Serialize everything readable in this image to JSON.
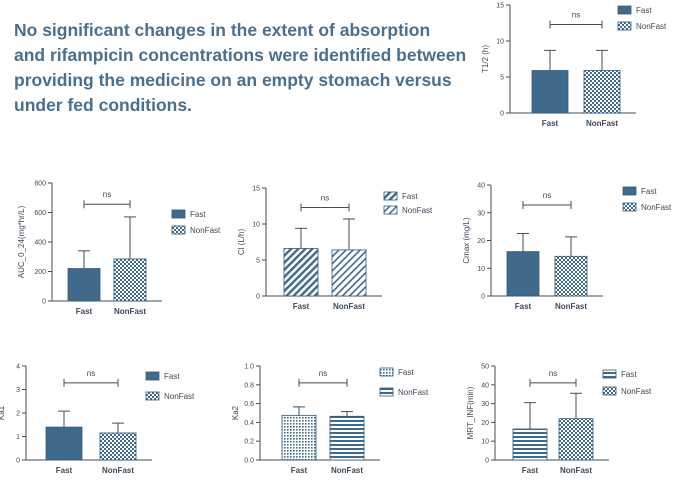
{
  "headline": {
    "lines": [
      "No significant changes in the extent of absorption",
      "and rifampicin concentrations were identified between",
      "providing the medicine on an empty stomach versus",
      "under fed conditions."
    ]
  },
  "colors": {
    "bar_fill": "#3f6a8c",
    "bar_stroke": "#33597a",
    "axis": "#444e58",
    "text": "#3d4a59",
    "headline": "#4a6f8f"
  },
  "chart_data": [
    {
      "type": "bar",
      "id": "t_half",
      "categories": [
        "Fast",
        "NonFast"
      ],
      "values": [
        5.9,
        5.9
      ],
      "errors": [
        2.8,
        2.8
      ],
      "ylabel": "T1/2 (h)",
      "xlabel": "",
      "title": "",
      "ylim": [
        0,
        15
      ],
      "yticks": [
        "0",
        "5",
        "10",
        "15"
      ],
      "significance": "ns",
      "legend": [
        "Fast",
        "NonFast"
      ],
      "legend_position": "right",
      "patterns": [
        "solid",
        "check"
      ]
    },
    {
      "type": "bar",
      "id": "auc",
      "categories": [
        "Fast",
        "NonFast"
      ],
      "values": [
        220,
        285
      ],
      "errors": [
        120,
        285
      ],
      "ylabel": "AUC_0_24(mg*hr/L)",
      "xlabel": "",
      "title": "",
      "ylim": [
        0,
        800
      ],
      "yticks": [
        "0",
        "200",
        "400",
        "600",
        "800"
      ],
      "significance": "ns",
      "legend": [
        "Fast",
        "NonFast"
      ],
      "legend_position": "right",
      "patterns": [
        "solid",
        "check"
      ]
    },
    {
      "type": "bar",
      "id": "cl",
      "categories": [
        "Fast",
        "NonFast"
      ],
      "values": [
        6.6,
        6.4
      ],
      "errors": [
        2.8,
        4.3
      ],
      "ylabel": "Cl (L/h)",
      "xlabel": "",
      "title": "",
      "ylim": [
        0,
        15
      ],
      "yticks": [
        "0",
        "5",
        "10",
        "15"
      ],
      "significance": "ns",
      "legend": [
        "Fast",
        "NonFast"
      ],
      "legend_position": "right",
      "patterns": [
        "diagonal",
        "diagonal-light"
      ]
    },
    {
      "type": "bar",
      "id": "cmax",
      "categories": [
        "Fast",
        "NonFast"
      ],
      "values": [
        16,
        14.3
      ],
      "errors": [
        6.5,
        7
      ],
      "ylabel": "Cmax (mg/L)",
      "xlabel": "",
      "title": "",
      "ylim": [
        0,
        40
      ],
      "yticks": [
        "0",
        "10",
        "20",
        "30",
        "40"
      ],
      "significance": "ns",
      "legend": [
        "Fast",
        "NonFast"
      ],
      "legend_position": "right",
      "patterns": [
        "solid",
        "check"
      ]
    },
    {
      "type": "bar",
      "id": "ka1",
      "categories": [
        "Fast",
        "NonFast"
      ],
      "values": [
        1.4,
        1.15
      ],
      "errors": [
        0.68,
        0.42
      ],
      "ylabel": "Ka1",
      "xlabel": "",
      "title": "",
      "ylim": [
        0,
        4
      ],
      "yticks": [
        "0",
        "1",
        "2",
        "3",
        "4"
      ],
      "significance": "ns",
      "legend": [
        "Fast",
        "NonFast"
      ],
      "legend_position": "right",
      "patterns": [
        "solid",
        "check"
      ]
    },
    {
      "type": "bar",
      "id": "ka2",
      "categories": [
        "Fast",
        "NonFast"
      ],
      "values": [
        0.475,
        0.465
      ],
      "errors": [
        0.09,
        0.05
      ],
      "ylabel": "Ka2",
      "xlabel": "",
      "title": "",
      "ylim": [
        0,
        1
      ],
      "yticks": [
        "0.0",
        "0.2",
        "0.4",
        "0.6",
        "0.8",
        "1.0"
      ],
      "significance": "ns",
      "legend": [
        "Fast",
        "NonFast"
      ],
      "legend_position": "right",
      "patterns": [
        "dots",
        "hlines"
      ]
    },
    {
      "type": "bar",
      "id": "mrt",
      "categories": [
        "Fast",
        "NonFast"
      ],
      "values": [
        16.5,
        22
      ],
      "errors": [
        14,
        13.5
      ],
      "ylabel": "MRT_INF(min)",
      "xlabel": "",
      "title": "",
      "ylim": [
        0,
        50
      ],
      "yticks": [
        "0",
        "10",
        "20",
        "30",
        "40",
        "50"
      ],
      "significance": "ns",
      "legend": [
        "Fast",
        "NonFast"
      ],
      "legend_position": "right",
      "patterns": [
        "hlines",
        "check"
      ]
    }
  ]
}
